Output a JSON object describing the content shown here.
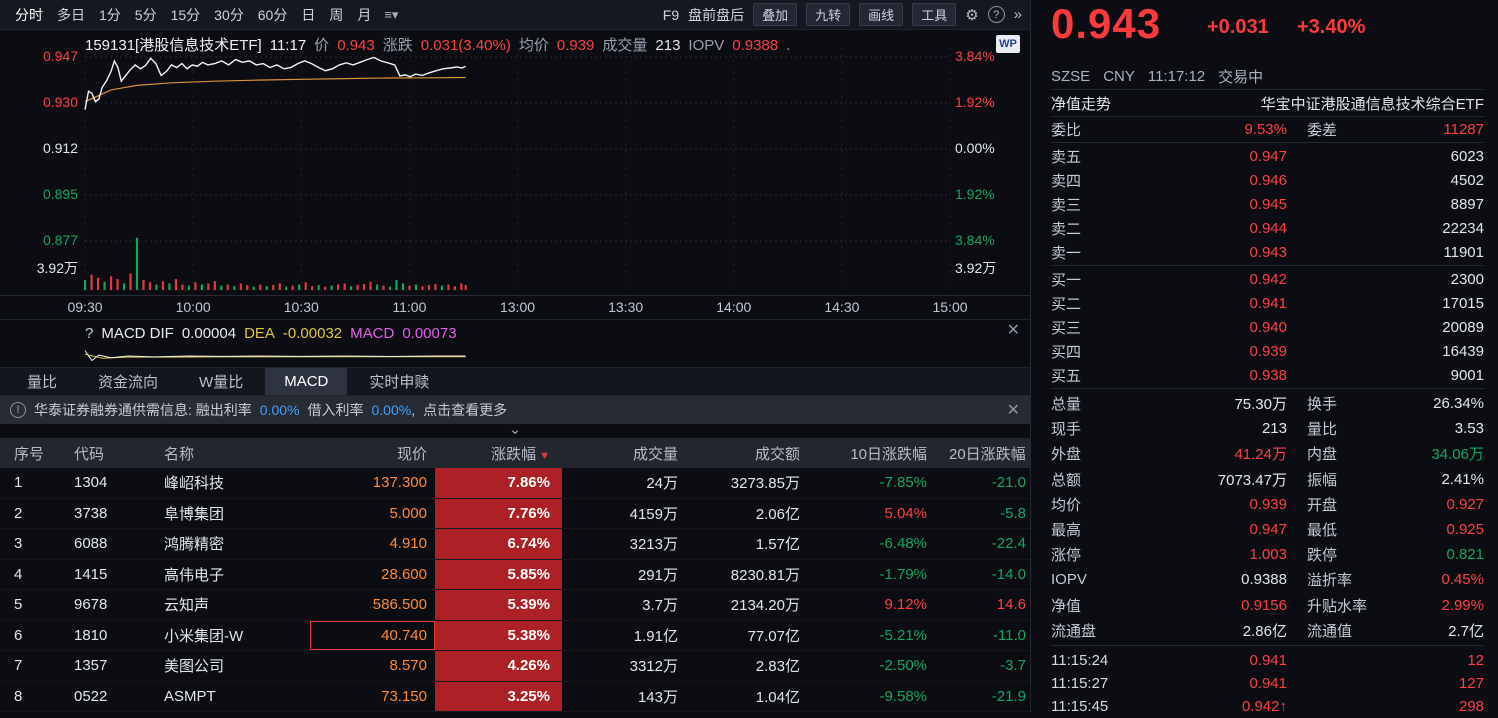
{
  "toolbar": {
    "periods": [
      "分时",
      "多日",
      "1分",
      "5分",
      "15分",
      "30分",
      "60分",
      "日",
      "周",
      "月"
    ],
    "active_period": 0,
    "tools_text": [
      "F9",
      "盘前盘后"
    ],
    "tools_buttons": [
      "叠加",
      "九转",
      "画线",
      "工具"
    ],
    "help_icon": "?",
    "more_icon": "»"
  },
  "chart_header": {
    "symbol": "159131[港股信息技术ETF]",
    "time": "11:17",
    "price_label": "价",
    "price": "0.943",
    "change_label": "涨跌",
    "change": "0.031(3.40%)",
    "avg_label": "均价",
    "avg": "0.939",
    "vol_label": "成交量",
    "vol": "213",
    "iopv_label": "IOPV",
    "iopv": "0.9388",
    "trailing": ".",
    "logo": "WP"
  },
  "chart": {
    "left_labels": [
      {
        "t": "0.947",
        "c": "up"
      },
      {
        "t": "0.930",
        "c": "up"
      },
      {
        "t": "0.912",
        "c": "neutral"
      },
      {
        "t": "0.895",
        "c": "down"
      },
      {
        "t": "0.877",
        "c": "down"
      }
    ],
    "right_labels": [
      {
        "t": "3.84%",
        "c": "up"
      },
      {
        "t": "1.92%",
        "c": "up"
      },
      {
        "t": "0.00%",
        "c": "neutral"
      },
      {
        "t": "1.92%",
        "c": "down"
      },
      {
        "t": "3.84%",
        "c": "down"
      }
    ],
    "vol_label_left": "3.92万",
    "vol_label_right": "3.92万",
    "x_ticks": [
      "09:30",
      "10:00",
      "10:30",
      "11:00",
      "13:00",
      "13:30",
      "14:00",
      "14:30",
      "15:00"
    ],
    "price_top": 0.947,
    "price_bottom": 0.877,
    "price_line": [
      [
        0.0,
        0.927
      ],
      [
        0.004,
        0.934
      ],
      [
        0.008,
        0.9332
      ],
      [
        0.012,
        0.93
      ],
      [
        0.016,
        0.931
      ],
      [
        0.02,
        0.9355
      ],
      [
        0.025,
        0.938
      ],
      [
        0.03,
        0.9415
      ],
      [
        0.034,
        0.9455
      ],
      [
        0.038,
        0.943
      ],
      [
        0.042,
        0.9378
      ],
      [
        0.046,
        0.9395
      ],
      [
        0.052,
        0.942
      ],
      [
        0.058,
        0.944
      ],
      [
        0.064,
        0.9425
      ],
      [
        0.07,
        0.9438
      ],
      [
        0.076,
        0.9465
      ],
      [
        0.082,
        0.9445
      ],
      [
        0.088,
        0.94
      ],
      [
        0.094,
        0.9415
      ],
      [
        0.1,
        0.944
      ],
      [
        0.106,
        0.943
      ],
      [
        0.112,
        0.9445
      ],
      [
        0.118,
        0.9425
      ],
      [
        0.124,
        0.944
      ],
      [
        0.13,
        0.9435
      ],
      [
        0.136,
        0.945
      ],
      [
        0.142,
        0.944
      ],
      [
        0.15,
        0.9445
      ],
      [
        0.158,
        0.9455
      ],
      [
        0.166,
        0.944
      ],
      [
        0.174,
        0.946
      ],
      [
        0.182,
        0.945
      ],
      [
        0.19,
        0.9455
      ],
      [
        0.198,
        0.944
      ],
      [
        0.206,
        0.9445
      ],
      [
        0.214,
        0.943
      ],
      [
        0.222,
        0.944
      ],
      [
        0.23,
        0.9425
      ],
      [
        0.238,
        0.943
      ],
      [
        0.246,
        0.9445
      ],
      [
        0.254,
        0.9455
      ],
      [
        0.262,
        0.9445
      ],
      [
        0.27,
        0.943
      ],
      [
        0.278,
        0.9418
      ],
      [
        0.286,
        0.9425
      ],
      [
        0.294,
        0.944
      ],
      [
        0.302,
        0.9448
      ],
      [
        0.31,
        0.944
      ],
      [
        0.318,
        0.945
      ],
      [
        0.326,
        0.946
      ],
      [
        0.334,
        0.9468
      ],
      [
        0.342,
        0.9455
      ],
      [
        0.35,
        0.9448
      ],
      [
        0.358,
        0.944
      ],
      [
        0.364,
        0.9398
      ],
      [
        0.37,
        0.9402
      ],
      [
        0.376,
        0.9395
      ],
      [
        0.382,
        0.9405
      ],
      [
        0.39,
        0.94
      ],
      [
        0.398,
        0.941
      ],
      [
        0.406,
        0.9418
      ],
      [
        0.414,
        0.9425
      ],
      [
        0.422,
        0.9428
      ],
      [
        0.43,
        0.9432
      ],
      [
        0.436,
        0.9428
      ],
      [
        0.44,
        0.9435
      ]
    ],
    "avg_line": [
      [
        0.0,
        0.93
      ],
      [
        0.03,
        0.9345
      ],
      [
        0.06,
        0.9362
      ],
      [
        0.1,
        0.9372
      ],
      [
        0.15,
        0.9378
      ],
      [
        0.2,
        0.9382
      ],
      [
        0.25,
        0.9385
      ],
      [
        0.3,
        0.9388
      ],
      [
        0.35,
        0.939
      ],
      [
        0.4,
        0.9391
      ],
      [
        0.44,
        0.9392
      ]
    ],
    "volume": [
      [
        0.0,
        0.18,
        "g"
      ],
      [
        0.0075,
        0.28,
        "r"
      ],
      [
        0.015,
        0.22,
        "r"
      ],
      [
        0.0225,
        0.15,
        "g"
      ],
      [
        0.03,
        0.25,
        "r"
      ],
      [
        0.0375,
        0.2,
        "r"
      ],
      [
        0.045,
        0.12,
        "g"
      ],
      [
        0.0525,
        0.3,
        "r"
      ],
      [
        0.06,
        0.95,
        "g"
      ],
      [
        0.0675,
        0.18,
        "r"
      ],
      [
        0.075,
        0.14,
        "r"
      ],
      [
        0.0825,
        0.1,
        "g"
      ],
      [
        0.09,
        0.16,
        "r"
      ],
      [
        0.0975,
        0.12,
        "g"
      ],
      [
        0.105,
        0.2,
        "r"
      ],
      [
        0.1125,
        0.1,
        "r"
      ],
      [
        0.12,
        0.08,
        "g"
      ],
      [
        0.1275,
        0.14,
        "r"
      ],
      [
        0.135,
        0.1,
        "g"
      ],
      [
        0.1425,
        0.12,
        "r"
      ],
      [
        0.15,
        0.16,
        "r"
      ],
      [
        0.1575,
        0.08,
        "g"
      ],
      [
        0.165,
        0.1,
        "r"
      ],
      [
        0.1725,
        0.07,
        "g"
      ],
      [
        0.18,
        0.12,
        "r"
      ],
      [
        0.1875,
        0.09,
        "r"
      ],
      [
        0.195,
        0.06,
        "g"
      ],
      [
        0.2025,
        0.1,
        "r"
      ],
      [
        0.21,
        0.07,
        "g"
      ],
      [
        0.2175,
        0.09,
        "r"
      ],
      [
        0.225,
        0.12,
        "r"
      ],
      [
        0.2325,
        0.06,
        "g"
      ],
      [
        0.24,
        0.08,
        "r"
      ],
      [
        0.2475,
        0.1,
        "g"
      ],
      [
        0.255,
        0.14,
        "r"
      ],
      [
        0.2625,
        0.07,
        "r"
      ],
      [
        0.27,
        0.09,
        "g"
      ],
      [
        0.2775,
        0.06,
        "r"
      ],
      [
        0.285,
        0.08,
        "g"
      ],
      [
        0.2925,
        0.1,
        "r"
      ],
      [
        0.3,
        0.12,
        "r"
      ],
      [
        0.3075,
        0.07,
        "g"
      ],
      [
        0.315,
        0.09,
        "r"
      ],
      [
        0.3225,
        0.11,
        "r"
      ],
      [
        0.33,
        0.15,
        "r"
      ],
      [
        0.3375,
        0.1,
        "g"
      ],
      [
        0.345,
        0.08,
        "r"
      ],
      [
        0.3525,
        0.06,
        "g"
      ],
      [
        0.36,
        0.18,
        "g"
      ],
      [
        0.3675,
        0.12,
        "g"
      ],
      [
        0.375,
        0.08,
        "r"
      ],
      [
        0.3825,
        0.1,
        "g"
      ],
      [
        0.39,
        0.07,
        "r"
      ],
      [
        0.3975,
        0.09,
        "r"
      ],
      [
        0.405,
        0.11,
        "r"
      ],
      [
        0.4125,
        0.08,
        "g"
      ],
      [
        0.42,
        0.1,
        "r"
      ],
      [
        0.4275,
        0.07,
        "r"
      ],
      [
        0.435,
        0.12,
        "r"
      ],
      [
        0.44,
        0.09,
        "r"
      ]
    ],
    "macd_mini_dif": [
      [
        0.0,
        0.2
      ],
      [
        0.008,
        0.75
      ],
      [
        0.016,
        0.45
      ],
      [
        0.03,
        0.6
      ],
      [
        0.05,
        0.5
      ],
      [
        0.08,
        0.55
      ],
      [
        0.12,
        0.5
      ],
      [
        0.16,
        0.52
      ],
      [
        0.2,
        0.5
      ],
      [
        0.25,
        0.52
      ],
      [
        0.3,
        0.5
      ],
      [
        0.35,
        0.53
      ],
      [
        0.4,
        0.5
      ],
      [
        0.44,
        0.5
      ]
    ],
    "macd_mini_dea": [
      [
        0.0,
        0.4
      ],
      [
        0.02,
        0.62
      ],
      [
        0.05,
        0.56
      ],
      [
        0.1,
        0.56
      ],
      [
        0.15,
        0.55
      ],
      [
        0.2,
        0.55
      ],
      [
        0.3,
        0.54
      ],
      [
        0.44,
        0.54
      ]
    ]
  },
  "macd": {
    "help": "?",
    "dif_label": "MACD DIF",
    "dif_value": "0.00004",
    "dea_label": "DEA",
    "dea_value": "-0.00032",
    "macd_label": "MACD",
    "macd_value": "0.00073"
  },
  "tabs": {
    "items": [
      "量比",
      "资金流向",
      "W量比",
      "MACD",
      "实时申赎"
    ],
    "active_index": 3
  },
  "notice": {
    "prefix": "华泰证券融券通供需信息: 融出利率",
    "rate1": "0.00%",
    "middle": "借入利率",
    "rate2": "0.00%",
    "comma": ",",
    "more": "点击查看更多"
  },
  "table": {
    "headers": [
      "序号",
      "代码",
      "名称",
      "现价",
      "涨跌幅",
      "成交量",
      "成交额",
      "10日涨跌幅",
      "20日涨跌幅"
    ],
    "rows": [
      {
        "no": "1",
        "code": "1304",
        "name": "峰岹科技",
        "price": "137.300",
        "chg": "7.86%",
        "vol": "24万",
        "amt": "3273.85万",
        "d10": "-7.85%",
        "d10c": "down",
        "d20": "-21.0",
        "d20c": "down",
        "hl": false
      },
      {
        "no": "2",
        "code": "3738",
        "name": "阜博集团",
        "price": "5.000",
        "chg": "7.76%",
        "vol": "4159万",
        "amt": "2.06亿",
        "d10": "5.04%",
        "d10c": "up",
        "d20": "-5.8",
        "d20c": "down",
        "hl": false
      },
      {
        "no": "3",
        "code": "6088",
        "name": "鸿腾精密",
        "price": "4.910",
        "chg": "6.74%",
        "vol": "3213万",
        "amt": "1.57亿",
        "d10": "-6.48%",
        "d10c": "down",
        "d20": "-22.4",
        "d20c": "down",
        "hl": false
      },
      {
        "no": "4",
        "code": "1415",
        "name": "高伟电子",
        "price": "28.600",
        "chg": "5.85%",
        "vol": "291万",
        "amt": "8230.81万",
        "d10": "-1.79%",
        "d10c": "down",
        "d20": "-14.0",
        "d20c": "down",
        "hl": false
      },
      {
        "no": "5",
        "code": "9678",
        "name": "云知声",
        "price": "586.500",
        "chg": "5.39%",
        "vol": "3.7万",
        "amt": "2134.20万",
        "d10": "9.12%",
        "d10c": "up",
        "d20": "14.6",
        "d20c": "up",
        "hl": false
      },
      {
        "no": "6",
        "code": "1810",
        "name": "小米集团-W",
        "price": "40.740",
        "chg": "5.38%",
        "vol": "1.91亿",
        "amt": "77.07亿",
        "d10": "-5.21%",
        "d10c": "down",
        "d20": "-11.0",
        "d20c": "down",
        "hl": true
      },
      {
        "no": "7",
        "code": "1357",
        "name": "美图公司",
        "price": "8.570",
        "chg": "4.26%",
        "vol": "3312万",
        "amt": "2.83亿",
        "d10": "-2.50%",
        "d10c": "down",
        "d20": "-3.7",
        "d20c": "down",
        "hl": false
      },
      {
        "no": "8",
        "code": "0522",
        "name": "ASMPT",
        "price": "73.150",
        "chg": "3.25%",
        "vol": "143万",
        "amt": "1.04亿",
        "d10": "-9.58%",
        "d10c": "down",
        "d20": "-21.9",
        "d20c": "down",
        "hl": false
      }
    ]
  },
  "quote": {
    "price": "0.943",
    "change": "+0.031",
    "pct": "+3.40%",
    "exchange": "SZSE",
    "currency": "CNY",
    "time": "11:17:12",
    "status": "交易中"
  },
  "fund": {
    "nav_link": "净值走势",
    "name": "华宝中证港股通信息技术综合ETF"
  },
  "weibi": {
    "label1": "委比",
    "value1": "9.53%",
    "label2": "委差",
    "value2": "11287"
  },
  "sell": [
    {
      "label": "卖五",
      "price": "0.947",
      "vol": "6023"
    },
    {
      "label": "卖四",
      "price": "0.946",
      "vol": "4502"
    },
    {
      "label": "卖三",
      "price": "0.945",
      "vol": "8897"
    },
    {
      "label": "卖二",
      "price": "0.944",
      "vol": "22234"
    },
    {
      "label": "卖一",
      "price": "0.943",
      "vol": "11901"
    }
  ],
  "buy": [
    {
      "label": "买一",
      "price": "0.942",
      "vol": "2300"
    },
    {
      "label": "买二",
      "price": "0.941",
      "vol": "17015"
    },
    {
      "label": "买三",
      "price": "0.940",
      "vol": "20089"
    },
    {
      "label": "买四",
      "price": "0.939",
      "vol": "16439"
    },
    {
      "label": "买五",
      "price": "0.938",
      "vol": "9001"
    }
  ],
  "stats": [
    {
      "l1": "总量",
      "v1": "75.30万",
      "c1": "neutral",
      "l2": "换手",
      "v2": "26.34%",
      "c2": "neutral"
    },
    {
      "l1": "现手",
      "v1": "213",
      "c1": "neutral",
      "l2": "量比",
      "v2": "3.53",
      "c2": "neutral"
    },
    {
      "l1": "外盘",
      "v1": "41.24万",
      "c1": "up",
      "l2": "内盘",
      "v2": "34.06万",
      "c2": "down"
    },
    {
      "l1": "总额",
      "v1": "7073.47万",
      "c1": "neutral",
      "l2": "振幅",
      "v2": "2.41%",
      "c2": "neutral"
    },
    {
      "l1": "均价",
      "v1": "0.939",
      "c1": "up",
      "l2": "开盘",
      "v2": "0.927",
      "c2": "up"
    },
    {
      "l1": "最高",
      "v1": "0.947",
      "c1": "up",
      "l2": "最低",
      "v2": "0.925",
      "c2": "up"
    },
    {
      "l1": "涨停",
      "v1": "1.003",
      "c1": "up",
      "l2": "跌停",
      "v2": "0.821",
      "c2": "down"
    },
    {
      "l1": "IOPV",
      "v1": "0.9388",
      "c1": "neutral",
      "l2": "溢折率",
      "v2": "0.45%",
      "c2": "up"
    },
    {
      "l1": "净值",
      "v1": "0.9156",
      "c1": "up",
      "l2": "升贴水率",
      "v2": "2.99%",
      "c2": "up"
    },
    {
      "l1": "流通盘",
      "v1": "2.86亿",
      "c1": "neutral",
      "l2": "流通值",
      "v2": "2.7亿",
      "c2": "neutral"
    }
  ],
  "ticks": [
    {
      "time": "11:15:24",
      "price": "0.941",
      "arrow": "",
      "qty": "12",
      "qc": "up"
    },
    {
      "time": "11:15:27",
      "price": "0.941",
      "arrow": "",
      "qty": "127",
      "qc": "up"
    },
    {
      "time": "11:15:45",
      "price": "0.942",
      "arrow": "↑",
      "qty": "298",
      "qc": "up"
    }
  ]
}
